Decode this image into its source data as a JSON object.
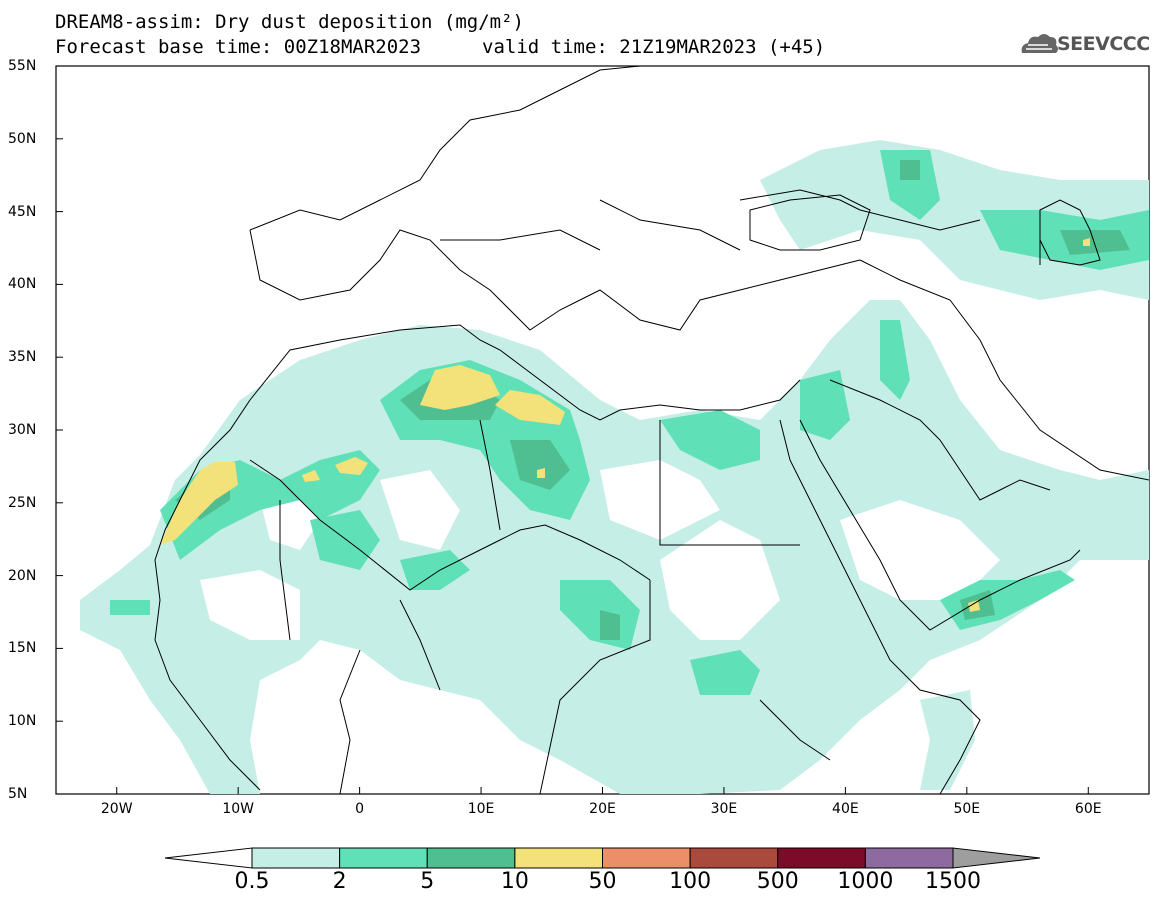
{
  "header": {
    "title_line1": "DREAM8-assim: Dry dust deposition (mg/m²)",
    "title_line2": "Forecast base time: 00Z18MAR2023",
    "valid_time": "valid time: 21Z19MAR2023 (+45)",
    "logo_text": "SEEVCCC",
    "logo_icon": "cloud-icon"
  },
  "map": {
    "lat_range": [
      5,
      55
    ],
    "lon_range": [
      -25,
      65
    ],
    "lat_labels": [
      "55N",
      "50N",
      "45N",
      "40N",
      "35N",
      "30N",
      "25N",
      "20N",
      "15N",
      "10N",
      "5N"
    ],
    "lon_labels": [
      "20W",
      "10W",
      "0",
      "10E",
      "20E",
      "30E",
      "40E",
      "50E",
      "60E"
    ],
    "lat_values": [
      55,
      50,
      45,
      40,
      35,
      30,
      25,
      20,
      15,
      10,
      5
    ],
    "lon_values": [
      -20,
      -10,
      0,
      10,
      20,
      30,
      40,
      50,
      60
    ]
  },
  "colorbar": {
    "labels": [
      "0.5",
      "2",
      "5",
      "10",
      "50",
      "100",
      "500",
      "1000",
      "1500"
    ],
    "colors": [
      "#c4eee6",
      "#5fe0b6",
      "#4fbf92",
      "#f3e27a",
      "#ea8f68",
      "#aa4a3c",
      "#7c0b2a",
      "#8f6aa0"
    ],
    "under_color": "#ffffff",
    "over_color": "#9e9e9e"
  }
}
